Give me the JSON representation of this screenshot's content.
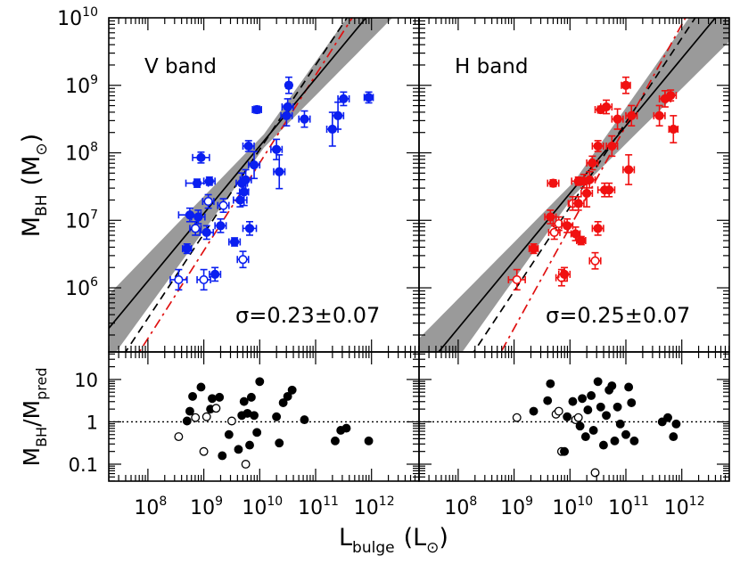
{
  "chart_data": {
    "type": "scatter",
    "xlabel": {
      "main": "L",
      "sub": "bulge",
      "unit": "(L",
      "unit_close": ")"
    },
    "ylabel_top": {
      "main": "M",
      "sub": "BH",
      "unit": "(M",
      "unit_close": ")"
    },
    "ylabel_bottom": {
      "num_main": "M",
      "num_sub": "BH",
      "sep": "/",
      "den_main": "M",
      "den_sub": "pred"
    },
    "x_scale": "log",
    "y_scale": "log",
    "xlim_log": [
      7.3,
      12.85
    ],
    "ylim_top_log": [
      5.05,
      10.0
    ],
    "ylim_bottom_log": [
      -1.4,
      1.65
    ],
    "x_ticks": [
      "10^8",
      "10^9",
      "10^10",
      "10^11",
      "10^12"
    ],
    "y_ticks_top": [
      "10^6",
      "10^7",
      "10^8",
      "10^9",
      "10^10"
    ],
    "y_ticks_bottom": [
      "0.1",
      "1",
      "10"
    ],
    "panels": [
      {
        "label": "V band",
        "sigma_label": "σ=0.23±0.07",
        "color": "#0a1ff0",
        "fit": {
          "slope": 1.0,
          "intercept": -1.9
        },
        "band_halfwidth": [
          0.5,
          0.1,
          0.55
        ],
        "black_dashed": {
          "slope": 1.25,
          "intercept": -4.45
        },
        "red_dashed": {
          "slope": 1.3,
          "intercept": -5.15
        },
        "points": [
          {
            "x": 8.55,
            "y": 6.12,
            "xe": 0.15,
            "ye": 0.15,
            "open": true
          },
          {
            "x": 8.7,
            "y": 6.58,
            "xe": 0.08,
            "ye": 0.07,
            "open": false
          },
          {
            "x": 8.75,
            "y": 7.08,
            "xe": 0.2,
            "ye": 0.1,
            "open": false
          },
          {
            "x": 8.85,
            "y": 6.88,
            "xe": 0.1,
            "ye": 0.1,
            "open": true
          },
          {
            "x": 8.9,
            "y": 7.05,
            "xe": 0.12,
            "ye": 0.1,
            "open": false
          },
          {
            "x": 8.88,
            "y": 7.55,
            "xe": 0.2,
            "ye": 0.06,
            "open": false
          },
          {
            "x": 8.95,
            "y": 7.93,
            "xe": 0.15,
            "ye": 0.08,
            "open": false
          },
          {
            "x": 9.0,
            "y": 6.12,
            "xe": 0.12,
            "ye": 0.15,
            "open": true
          },
          {
            "x": 9.05,
            "y": 6.82,
            "xe": 0.12,
            "ye": 0.1,
            "open": false
          },
          {
            "x": 9.08,
            "y": 7.28,
            "xe": 0.1,
            "ye": 0.1,
            "open": true
          },
          {
            "x": 9.1,
            "y": 7.58,
            "xe": 0.1,
            "ye": 0.06,
            "open": false
          },
          {
            "x": 9.2,
            "y": 6.2,
            "xe": 0.1,
            "ye": 0.1,
            "open": false
          },
          {
            "x": 9.3,
            "y": 6.92,
            "xe": 0.1,
            "ye": 0.1,
            "open": false
          },
          {
            "x": 9.35,
            "y": 7.22,
            "xe": 0.1,
            "ye": 0.1,
            "open": true
          },
          {
            "x": 9.55,
            "y": 6.68,
            "xe": 0.1,
            "ye": 0.06,
            "open": false
          },
          {
            "x": 9.65,
            "y": 7.3,
            "xe": 0.12,
            "ye": 0.1,
            "open": false
          },
          {
            "x": 9.68,
            "y": 7.55,
            "xe": 0.1,
            "ye": 0.15,
            "open": false
          },
          {
            "x": 9.7,
            "y": 6.42,
            "xe": 0.1,
            "ye": 0.12,
            "open": true
          },
          {
            "x": 9.72,
            "y": 7.42,
            "xe": 0.08,
            "ye": 0.2,
            "open": false
          },
          {
            "x": 9.75,
            "y": 7.6,
            "xe": 0.1,
            "ye": 0.15,
            "open": false
          },
          {
            "x": 9.8,
            "y": 8.1,
            "xe": 0.1,
            "ye": 0.08,
            "open": false
          },
          {
            "x": 9.82,
            "y": 6.88,
            "xe": 0.12,
            "ye": 0.1,
            "open": false
          },
          {
            "x": 9.9,
            "y": 7.82,
            "xe": 0.1,
            "ye": 0.2,
            "open": false
          },
          {
            "x": 9.95,
            "y": 8.64,
            "xe": 0.08,
            "ye": 0.05,
            "open": false
          },
          {
            "x": 10.3,
            "y": 8.05,
            "xe": 0.1,
            "ye": 0.15,
            "open": false
          },
          {
            "x": 10.35,
            "y": 7.72,
            "xe": 0.1,
            "ye": 0.25,
            "open": false
          },
          {
            "x": 10.48,
            "y": 8.55,
            "xe": 0.1,
            "ye": 0.15,
            "open": false
          },
          {
            "x": 10.5,
            "y": 8.68,
            "xe": 0.1,
            "ye": 0.12,
            "open": false
          },
          {
            "x": 10.52,
            "y": 9.0,
            "xe": 0.05,
            "ye": 0.12,
            "open": false
          },
          {
            "x": 10.8,
            "y": 8.5,
            "xe": 0.1,
            "ye": 0.12,
            "open": false
          },
          {
            "x": 11.3,
            "y": 8.35,
            "xe": 0.1,
            "ye": 0.25,
            "open": false
          },
          {
            "x": 11.4,
            "y": 8.55,
            "xe": 0.1,
            "ye": 0.2,
            "open": false
          },
          {
            "x": 11.5,
            "y": 8.8,
            "xe": 0.1,
            "ye": 0.1,
            "open": false
          },
          {
            "x": 11.95,
            "y": 8.82,
            "xe": 0.08,
            "ye": 0.08,
            "open": false
          }
        ],
        "residuals": [
          {
            "x": 8.55,
            "y": -0.35,
            "open": true
          },
          {
            "x": 8.7,
            "y": 0.02,
            "open": false
          },
          {
            "x": 8.75,
            "y": 0.25,
            "open": false
          },
          {
            "x": 8.8,
            "y": 0.6,
            "open": false
          },
          {
            "x": 8.85,
            "y": 0.1,
            "open": true
          },
          {
            "x": 8.95,
            "y": 0.82,
            "open": false
          },
          {
            "x": 9.0,
            "y": -0.7,
            "open": true
          },
          {
            "x": 9.05,
            "y": 0.12,
            "open": true
          },
          {
            "x": 9.12,
            "y": 0.3,
            "open": false
          },
          {
            "x": 9.15,
            "y": 0.55,
            "open": false
          },
          {
            "x": 9.22,
            "y": 0.32,
            "open": true
          },
          {
            "x": 9.28,
            "y": 0.58,
            "open": false
          },
          {
            "x": 9.33,
            "y": -0.8,
            "open": false
          },
          {
            "x": 9.45,
            "y": -0.3,
            "open": false
          },
          {
            "x": 9.5,
            "y": 0.02,
            "open": true
          },
          {
            "x": 9.62,
            "y": -0.65,
            "open": false
          },
          {
            "x": 9.68,
            "y": 0.15,
            "open": false
          },
          {
            "x": 9.72,
            "y": 0.48,
            "open": false
          },
          {
            "x": 9.75,
            "y": -1.0,
            "open": true
          },
          {
            "x": 9.78,
            "y": 0.2,
            "open": false
          },
          {
            "x": 9.82,
            "y": -0.55,
            "open": false
          },
          {
            "x": 9.85,
            "y": 0.58,
            "open": false
          },
          {
            "x": 9.9,
            "y": 0.15,
            "open": false
          },
          {
            "x": 9.95,
            "y": -0.25,
            "open": false
          },
          {
            "x": 10.0,
            "y": 0.95,
            "open": false
          },
          {
            "x": 10.3,
            "y": 0.12,
            "open": false
          },
          {
            "x": 10.35,
            "y": -0.5,
            "open": false
          },
          {
            "x": 10.42,
            "y": 0.45,
            "open": false
          },
          {
            "x": 10.5,
            "y": 0.6,
            "open": false
          },
          {
            "x": 10.58,
            "y": 0.75,
            "open": false
          },
          {
            "x": 10.8,
            "y": 0.05,
            "open": false
          },
          {
            "x": 11.35,
            "y": -0.45,
            "open": false
          },
          {
            "x": 11.45,
            "y": -0.2,
            "open": false
          },
          {
            "x": 11.55,
            "y": -0.15,
            "open": false
          },
          {
            "x": 11.95,
            "y": -0.45,
            "open": false
          }
        ]
      },
      {
        "label": "H band",
        "sigma_label": "σ=0.25±0.07",
        "color": "#f01010",
        "fit": {
          "slope": 1.0,
          "intercept": -2.6
        },
        "band_halfwidth": [
          0.55,
          0.1,
          0.6
        ],
        "black_dashed": {
          "slope": 1.25,
          "intercept": -5.3
        },
        "red_dashed": {
          "slope": 1.5,
          "intercept": -8.1
        },
        "points": [
          {
            "x": 9.05,
            "y": 6.12,
            "xe": 0.15,
            "ye": 0.15,
            "open": true
          },
          {
            "x": 9.35,
            "y": 6.58,
            "xe": 0.08,
            "ye": 0.07,
            "open": false
          },
          {
            "x": 9.65,
            "y": 7.05,
            "xe": 0.1,
            "ye": 0.1,
            "open": false
          },
          {
            "x": 9.7,
            "y": 7.55,
            "xe": 0.1,
            "ye": 0.05,
            "open": false
          },
          {
            "x": 9.72,
            "y": 6.82,
            "xe": 0.1,
            "ye": 0.1,
            "open": true
          },
          {
            "x": 9.8,
            "y": 6.95,
            "xe": 0.1,
            "ye": 0.1,
            "open": true
          },
          {
            "x": 9.85,
            "y": 6.15,
            "xe": 0.1,
            "ye": 0.12,
            "open": true
          },
          {
            "x": 9.9,
            "y": 6.2,
            "xe": 0.1,
            "ye": 0.1,
            "open": false
          },
          {
            "x": 9.95,
            "y": 6.92,
            "xe": 0.1,
            "ye": 0.1,
            "open": false
          },
          {
            "x": 10.05,
            "y": 7.25,
            "xe": 0.08,
            "ye": 0.1,
            "open": true
          },
          {
            "x": 10.1,
            "y": 6.8,
            "xe": 0.08,
            "ye": 0.1,
            "open": false
          },
          {
            "x": 10.15,
            "y": 7.58,
            "xe": 0.12,
            "ye": 0.06,
            "open": false
          },
          {
            "x": 10.15,
            "y": 7.25,
            "xe": 0.1,
            "ye": 0.1,
            "open": false
          },
          {
            "x": 10.2,
            "y": 6.7,
            "xe": 0.08,
            "ye": 0.06,
            "open": false
          },
          {
            "x": 10.25,
            "y": 7.58,
            "xe": 0.08,
            "ye": 0.1,
            "open": false
          },
          {
            "x": 10.3,
            "y": 7.4,
            "xe": 0.1,
            "ye": 0.2,
            "open": false
          },
          {
            "x": 10.35,
            "y": 7.6,
            "xe": 0.1,
            "ye": 0.12,
            "open": false
          },
          {
            "x": 10.4,
            "y": 7.85,
            "xe": 0.1,
            "ye": 0.1,
            "open": false
          },
          {
            "x": 10.45,
            "y": 6.4,
            "xe": 0.1,
            "ye": 0.12,
            "open": true
          },
          {
            "x": 10.5,
            "y": 6.88,
            "xe": 0.1,
            "ye": 0.1,
            "open": false
          },
          {
            "x": 10.5,
            "y": 8.1,
            "xe": 0.1,
            "ye": 0.08,
            "open": false
          },
          {
            "x": 10.55,
            "y": 8.64,
            "xe": 0.1,
            "ye": 0.05,
            "open": false
          },
          {
            "x": 10.62,
            "y": 7.45,
            "xe": 0.12,
            "ye": 0.1,
            "open": false
          },
          {
            "x": 10.65,
            "y": 8.68,
            "xe": 0.1,
            "ye": 0.1,
            "open": false
          },
          {
            "x": 10.7,
            "y": 7.45,
            "xe": 0.1,
            "ye": 0.1,
            "open": false
          },
          {
            "x": 10.75,
            "y": 8.1,
            "xe": 0.1,
            "ye": 0.15,
            "open": false
          },
          {
            "x": 10.85,
            "y": 8.5,
            "xe": 0.1,
            "ye": 0.15,
            "open": false
          },
          {
            "x": 11.0,
            "y": 9.0,
            "xe": 0.08,
            "ye": 0.12,
            "open": false
          },
          {
            "x": 11.05,
            "y": 7.75,
            "xe": 0.1,
            "ye": 0.22,
            "open": false
          },
          {
            "x": 11.1,
            "y": 8.55,
            "xe": 0.1,
            "ye": 0.15,
            "open": false
          },
          {
            "x": 11.6,
            "y": 8.55,
            "xe": 0.1,
            "ye": 0.15,
            "open": false
          },
          {
            "x": 11.7,
            "y": 8.8,
            "xe": 0.1,
            "ye": 0.12,
            "open": false
          },
          {
            "x": 11.8,
            "y": 8.85,
            "xe": 0.1,
            "ye": 0.08,
            "open": false
          },
          {
            "x": 11.85,
            "y": 8.35,
            "xe": 0.08,
            "ye": 0.2,
            "open": false
          }
        ],
        "residuals": [
          {
            "x": 9.05,
            "y": 0.1,
            "open": true
          },
          {
            "x": 9.35,
            "y": 0.25,
            "open": false
          },
          {
            "x": 9.6,
            "y": 0.5,
            "open": false
          },
          {
            "x": 9.65,
            "y": 0.9,
            "open": false
          },
          {
            "x": 9.75,
            "y": 0.18,
            "open": true
          },
          {
            "x": 9.8,
            "y": 0.25,
            "open": true
          },
          {
            "x": 9.85,
            "y": -0.7,
            "open": true
          },
          {
            "x": 9.9,
            "y": -0.7,
            "open": false
          },
          {
            "x": 9.95,
            "y": 0.12,
            "open": false
          },
          {
            "x": 10.05,
            "y": 0.48,
            "open": false
          },
          {
            "x": 10.1,
            "y": 0.05,
            "open": true
          },
          {
            "x": 10.15,
            "y": 0.1,
            "open": true
          },
          {
            "x": 10.18,
            "y": -0.1,
            "open": false
          },
          {
            "x": 10.22,
            "y": 0.55,
            "open": false
          },
          {
            "x": 10.28,
            "y": -0.35,
            "open": false
          },
          {
            "x": 10.32,
            "y": 0.28,
            "open": false
          },
          {
            "x": 10.38,
            "y": 0.62,
            "open": false
          },
          {
            "x": 10.42,
            "y": -0.2,
            "open": false
          },
          {
            "x": 10.45,
            "y": -1.2,
            "open": true
          },
          {
            "x": 10.5,
            "y": 0.95,
            "open": false
          },
          {
            "x": 10.55,
            "y": 0.35,
            "open": false
          },
          {
            "x": 10.6,
            "y": -0.55,
            "open": false
          },
          {
            "x": 10.65,
            "y": 0.15,
            "open": false
          },
          {
            "x": 10.7,
            "y": 0.75,
            "open": false
          },
          {
            "x": 10.75,
            "y": 0.85,
            "open": false
          },
          {
            "x": 10.8,
            "y": -0.45,
            "open": false
          },
          {
            "x": 10.85,
            "y": 0.35,
            "open": false
          },
          {
            "x": 10.9,
            "y": -0.05,
            "open": false
          },
          {
            "x": 11.0,
            "y": -0.3,
            "open": false
          },
          {
            "x": 11.05,
            "y": 0.82,
            "open": false
          },
          {
            "x": 11.1,
            "y": 0.45,
            "open": false
          },
          {
            "x": 11.15,
            "y": -0.45,
            "open": false
          },
          {
            "x": 11.65,
            "y": 0.0,
            "open": false
          },
          {
            "x": 11.75,
            "y": 0.1,
            "open": false
          },
          {
            "x": 11.85,
            "y": -0.35,
            "open": false
          },
          {
            "x": 11.9,
            "y": -0.05,
            "open": false
          }
        ]
      }
    ]
  }
}
